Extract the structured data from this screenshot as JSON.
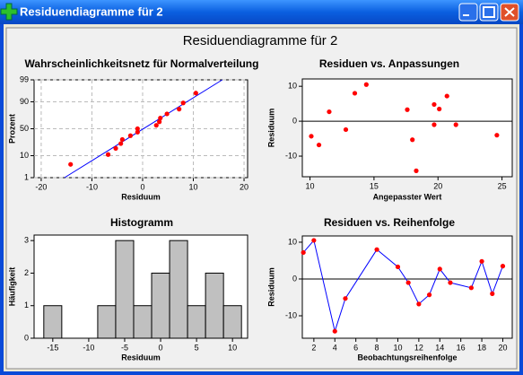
{
  "window": {
    "title": "Residuendiagramme für 2"
  },
  "title": "Residuendiagramme für 2",
  "chart_data": [
    {
      "type": "probability",
      "title": "Wahrscheinlichkeitsnetz für Normalverteilung",
      "xlabel": "Residuum",
      "ylabel": "Prozent",
      "x": [
        -14.2,
        -6.8,
        -5.3,
        -4.3,
        -4.0,
        -2.4,
        -1.0,
        -1.0,
        2.7,
        3.3,
        3.5,
        4.8,
        7.2,
        8.0,
        10.5
      ],
      "values": [
        4.5,
        11.0,
        17.5,
        24.0,
        30.5,
        37.0,
        43.5,
        50,
        56.5,
        63.0,
        69.5,
        76.0,
        82.5,
        89.0,
        95.5
      ],
      "xlim": [
        -21.4,
        20.7
      ],
      "ylim": [
        1,
        99
      ],
      "yscale": "probability",
      "xticks": [
        -20,
        -10,
        0,
        10,
        20
      ],
      "yticks": [
        1,
        10,
        50,
        90,
        99
      ],
      "grid": true,
      "color": "#ff0000",
      "fit_line": {
        "x": [
          -15.4,
          15.7
        ],
        "values": [
          1,
          99
        ],
        "color": "#0000ff"
      }
    },
    {
      "type": "scatter",
      "title": "Residuen vs. Anpassungen",
      "xlabel": "Angepasster Wert",
      "ylabel": "Residuum",
      "x": [
        10.1,
        10.7,
        11.5,
        12.8,
        13.5,
        14.4,
        17.6,
        18.0,
        18.3,
        19.7,
        19.7,
        20.1,
        20.7,
        21.4,
        24.6
      ],
      "values": [
        -4.3,
        -6.8,
        2.7,
        -2.4,
        8.0,
        10.5,
        3.3,
        -5.3,
        -14.2,
        4.8,
        -1.0,
        3.5,
        7.2,
        -1.0,
        -4.0
      ],
      "xlim": [
        9.4,
        25.8
      ],
      "ylim": [
        -15.9,
        12.1
      ],
      "xticks": [
        10,
        15,
        20,
        25
      ],
      "yticks": [
        -10,
        0,
        10
      ],
      "grid": false,
      "color": "#ff0000",
      "reference_line": 0
    },
    {
      "type": "histogram",
      "title": "Histogramm",
      "xlabel": "Residuum",
      "ylabel": "Häufigkeit",
      "bins": [
        -16.25,
        -13.75,
        -11.25,
        -8.75,
        -6.25,
        -3.75,
        -1.25,
        1.25,
        3.75,
        6.25,
        8.75,
        11.25
      ],
      "values": [
        1,
        0,
        0,
        1,
        3,
        1,
        2,
        3,
        1,
        2,
        1
      ],
      "xlim": [
        -17.6,
        12.1
      ],
      "ylim": [
        0,
        3.17
      ],
      "xticks": [
        -15,
        -10,
        -5,
        0,
        5,
        10
      ],
      "yticks": [
        0,
        1,
        2,
        3
      ],
      "grid": false,
      "color": "#c0c0c0"
    },
    {
      "type": "line",
      "title": "Residuen vs. Reihenfolge",
      "xlabel": "Beobachtungsreihenfolge",
      "ylabel": "Residuum",
      "x": [
        1,
        2,
        4,
        5,
        8,
        10,
        11,
        12,
        13,
        14,
        15,
        17,
        18,
        19,
        20
      ],
      "values": [
        7.2,
        10.5,
        -14.2,
        -5.3,
        8.0,
        3.3,
        -1.0,
        -6.8,
        -4.3,
        2.7,
        -1.0,
        -2.4,
        4.8,
        -4.0,
        3.5
      ],
      "xlim": [
        0.9,
        20.9
      ],
      "ylim": [
        -16.1,
        11.7
      ],
      "xticks": [
        2,
        4,
        6,
        8,
        10,
        12,
        14,
        16,
        18,
        20
      ],
      "yticks": [
        -10,
        0,
        10
      ],
      "grid": false,
      "color": "#0000ff",
      "marker_color": "#ff0000",
      "reference_line": 0
    }
  ]
}
